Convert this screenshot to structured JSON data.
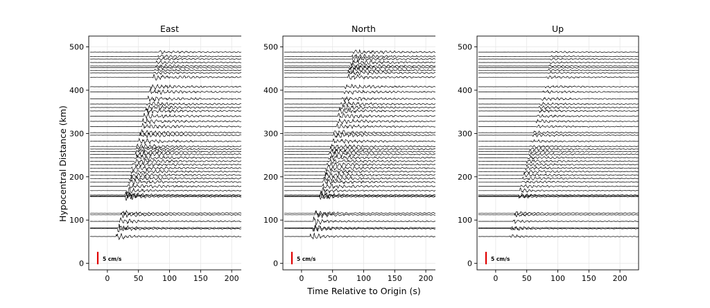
{
  "chart_data": {
    "type": "line",
    "description_x_units": "s",
    "xlabel": "Time Relative to Origin (s)",
    "ylabel": "Hypocentral Distance (km)",
    "xlim": [
      -30,
      230
    ],
    "ylim": [
      -15,
      525
    ],
    "x_ticks": [
      0,
      50,
      100,
      150,
      200
    ],
    "y_ticks": [
      0,
      100,
      200,
      300,
      400,
      500
    ],
    "grid": true,
    "trace_distances_km": [
      62,
      80,
      82,
      97,
      112,
      116,
      154,
      156,
      158,
      168,
      178,
      188,
      196,
      204,
      212,
      220,
      228,
      236,
      244,
      252,
      258,
      264,
      270,
      282,
      296,
      302,
      316,
      328,
      340,
      352,
      360,
      368,
      380,
      396,
      408,
      430,
      440,
      446,
      452,
      456,
      464,
      472,
      478,
      488
    ],
    "scale_bar": {
      "label": "5 cm/s",
      "color": "#e00000"
    },
    "panels": [
      {
        "title": "East",
        "show_ylabel": true,
        "show_xlabel": false
      },
      {
        "title": "North",
        "show_ylabel": false,
        "show_xlabel": true
      },
      {
        "title": "Up",
        "show_ylabel": false,
        "show_xlabel": false
      }
    ]
  }
}
